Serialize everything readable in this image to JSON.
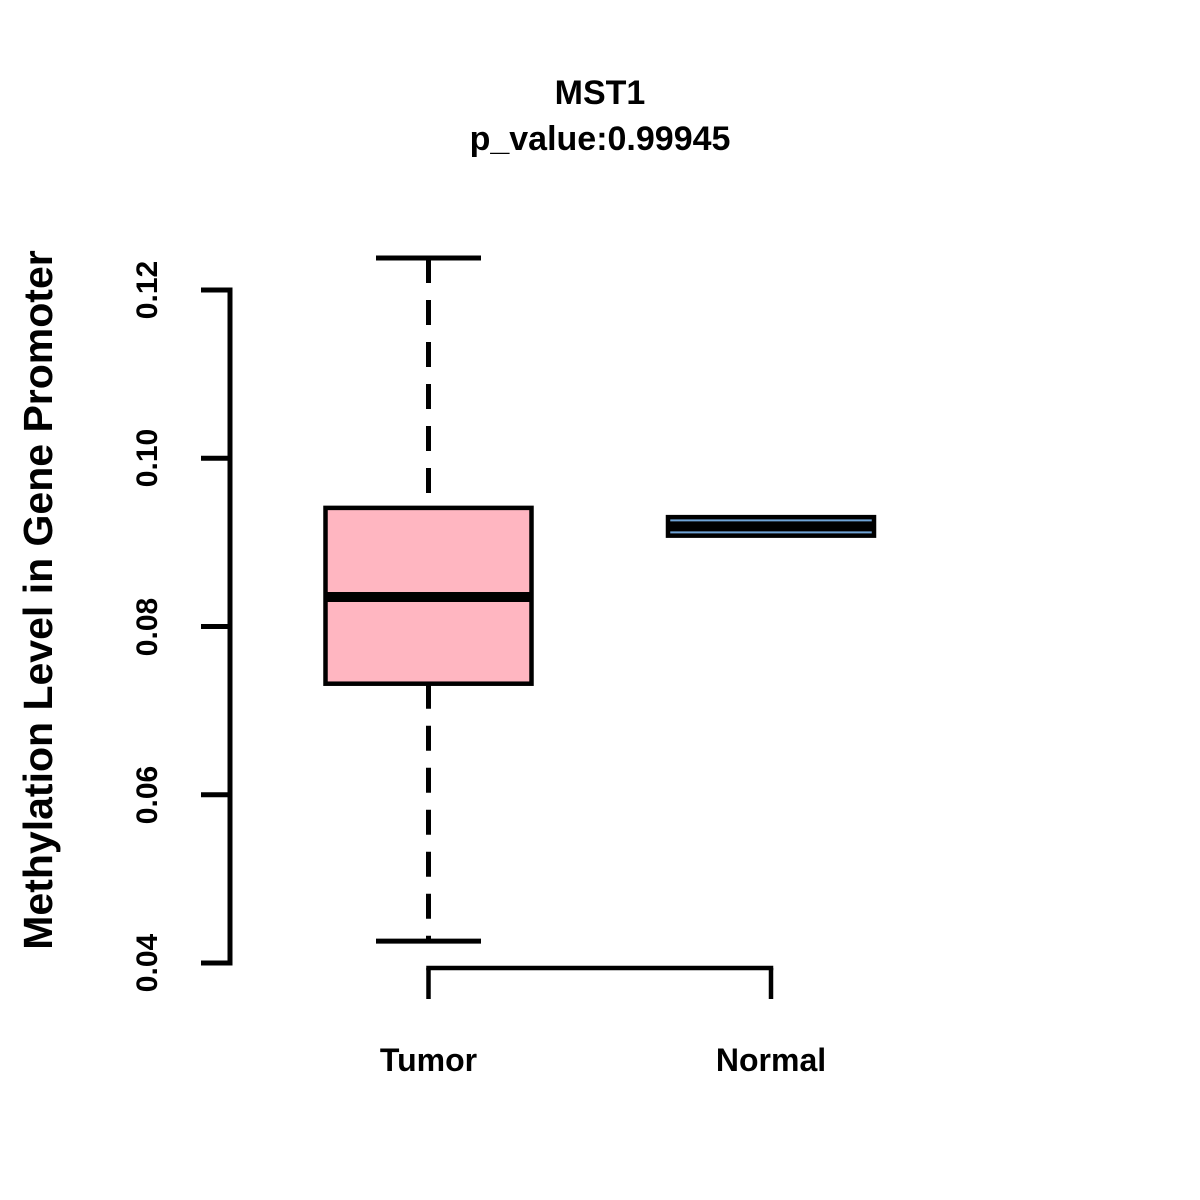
{
  "figure": {
    "title": "MST1",
    "subtitle": "p_value:0.99945",
    "ylabel": "Methylation Level in Gene Promoter"
  },
  "chart_data": {
    "type": "boxplot",
    "title": "MST1",
    "subtitle": "p_value:0.99945",
    "ylabel": "Methylation Level in Gene Promoter",
    "xlabel": "",
    "categories": [
      "Tumor",
      "Normal"
    ],
    "series": [
      {
        "name": "Tumor",
        "whisker_low": 0.0426,
        "q1": 0.0732,
        "median": 0.0835,
        "q3": 0.0941,
        "whisker_high": 0.1238,
        "fill_color": "#FFB6C1"
      },
      {
        "name": "Normal",
        "whisker_low": 0.0908,
        "q1": 0.0908,
        "median": 0.0919,
        "q3": 0.093,
        "whisker_high": 0.093,
        "fill_color": "#6FA3D6"
      }
    ],
    "yticks": [
      0.04,
      0.06,
      0.08,
      0.1,
      0.12
    ],
    "ytick_labels": [
      "0.04",
      "0.06",
      "0.08",
      "0.10",
      "0.12"
    ],
    "ylim": [
      0.0426,
      0.1238
    ],
    "grid": false,
    "legend": "none",
    "colors": {
      "stroke": "#000000",
      "background": "#FFFFFF"
    }
  }
}
